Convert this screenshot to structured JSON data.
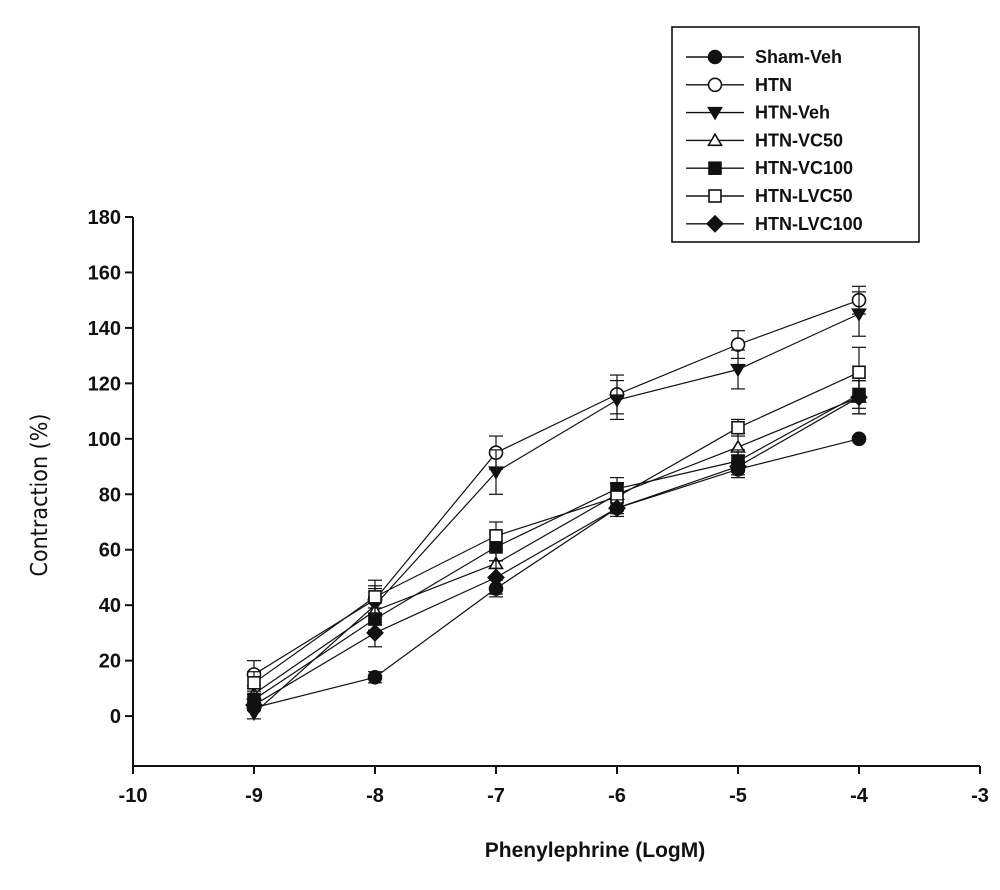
{
  "chart_data": {
    "type": "line",
    "xlabel": "Phenylephrine (LogM)",
    "ylabel": "Contraction (%)",
    "xlim": [
      -10,
      -3
    ],
    "ylim": [
      -18,
      180
    ],
    "xticks": [
      -10,
      -9,
      -8,
      -7,
      -6,
      -5,
      -4,
      -3
    ],
    "yticks": [
      0,
      20,
      40,
      60,
      80,
      100,
      120,
      140,
      160,
      180
    ],
    "x": [
      -9,
      -8,
      -7,
      -6,
      -5,
      -4
    ],
    "legend_position": "top-right",
    "grid": false,
    "series": [
      {
        "name": "Sham-Veh",
        "marker": "circle-filled",
        "values": [
          3,
          14,
          46,
          75,
          89,
          100
        ],
        "errors": [
          1,
          2,
          3,
          2,
          2,
          0
        ]
      },
      {
        "name": "HTN",
        "marker": "circle-open",
        "values": [
          15,
          42,
          95,
          116,
          134,
          150
        ],
        "errors": [
          5,
          5,
          6,
          7,
          5,
          5
        ]
      },
      {
        "name": "HTN-Veh",
        "marker": "triangle-down-filled",
        "values": [
          1,
          40,
          88,
          114,
          125,
          145
        ],
        "errors": [
          2,
          6,
          8,
          7,
          7,
          8
        ]
      },
      {
        "name": "HTN-VC50",
        "marker": "triangle-up-open",
        "values": [
          8,
          38,
          55,
          80,
          97,
          115
        ],
        "errors": [
          3,
          5,
          5,
          4,
          5,
          6
        ]
      },
      {
        "name": "HTN-VC100",
        "marker": "square-filled",
        "values": [
          6,
          35,
          61,
          82,
          92,
          116
        ],
        "errors": [
          3,
          4,
          5,
          4,
          4,
          5
        ]
      },
      {
        "name": "HTN-LVC50",
        "marker": "square-open",
        "values": [
          12,
          43,
          65,
          79,
          104,
          124
        ],
        "errors": [
          4,
          6,
          5,
          5,
          3,
          9
        ]
      },
      {
        "name": "HTN-LVC100",
        "marker": "diamond-filled",
        "values": [
          4,
          30,
          50,
          75,
          90,
          115
        ],
        "errors": [
          2,
          5,
          6,
          3,
          4,
          6
        ]
      }
    ]
  }
}
